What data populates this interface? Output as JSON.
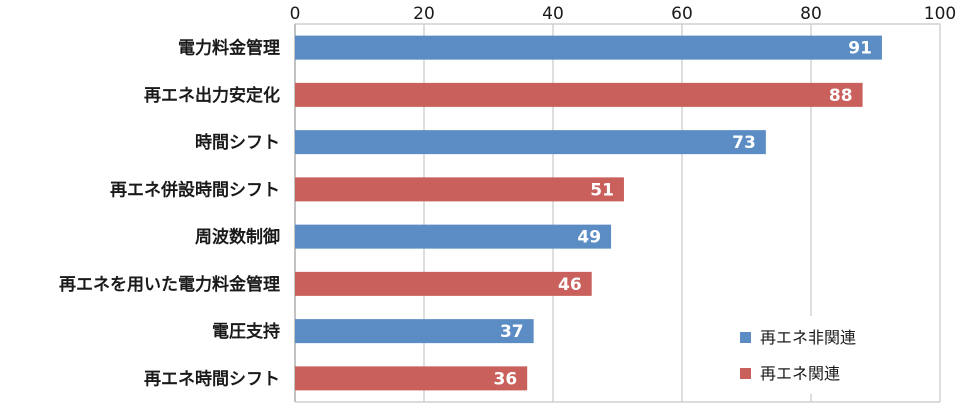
{
  "chart_data": {
    "type": "bar",
    "orientation": "horizontal",
    "title": "",
    "xlabel": "",
    "ylabel": "",
    "xlim": [
      0,
      100
    ],
    "x_ticks": [
      0,
      20,
      40,
      60,
      80,
      100
    ],
    "x_axis_position": "top",
    "grid": true,
    "categories": [
      "電力料金管理",
      "再エネ出力安定化",
      "時間シフト",
      "再エネ併設時間シフト",
      "周波数制御",
      "再エネを用いた電力料金管理",
      "電圧支持",
      "再エネ時間シフト"
    ],
    "values": [
      91,
      88,
      73,
      51,
      49,
      46,
      37,
      36
    ],
    "bar_series": [
      "non_re",
      "re",
      "non_re",
      "re",
      "non_re",
      "re",
      "non_re",
      "re"
    ],
    "series": [
      {
        "key": "non_re",
        "name": "再エネ非関連",
        "color": "#5b8cc4"
      },
      {
        "key": "re",
        "name": "再エネ関連",
        "color": "#c9605b"
      }
    ],
    "legend_position": "bottom-right"
  }
}
